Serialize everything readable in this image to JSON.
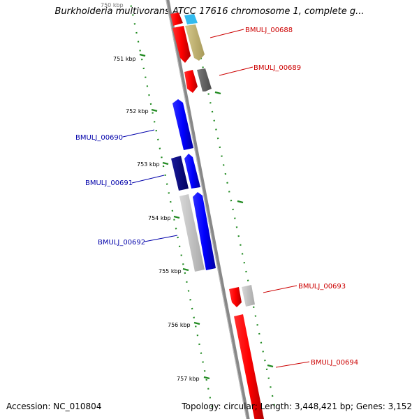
{
  "title": "Burkholderia multivorans ATCC 17616 chromosome 1, complete g...",
  "footer": {
    "accession": "Accession: NC_010804",
    "summary": "Topology: circular; Length: 3,448,421 bp; Genes: 3,152"
  },
  "ticks": [
    "750 kbp",
    "751 kbp",
    "752 kbp",
    "753 kbp",
    "754 kbp",
    "755 kbp",
    "756 kbp",
    "757 kbp"
  ],
  "genes": [
    {
      "name": "BMULJ_00688",
      "strand": "+",
      "color": "#cc0000"
    },
    {
      "name": "BMULJ_00689",
      "strand": "+",
      "color": "#cc0000"
    },
    {
      "name": "BMULJ_00690",
      "strand": "-",
      "color": "#0000aa"
    },
    {
      "name": "BMULJ_00691",
      "strand": "-",
      "color": "#0000aa"
    },
    {
      "name": "BMULJ_00692",
      "strand": "-",
      "color": "#0000aa"
    },
    {
      "name": "BMULJ_00693",
      "strand": "+",
      "color": "#cc0000"
    },
    {
      "name": "BMULJ_00694",
      "strand": "+",
      "color": "#cc0000"
    }
  ],
  "colors": {
    "forward_cds": "#ff0000",
    "reverse_cds": "#0000ff",
    "reverse_cds_dark": "#000080",
    "grey_feature": "#bfbfbf",
    "dark_grey_feature": "#666666",
    "khaki_feature": "#c8b878",
    "cyan_feature": "#33bbee",
    "backbone": "#888888",
    "gc_dashes": "#228b22"
  }
}
